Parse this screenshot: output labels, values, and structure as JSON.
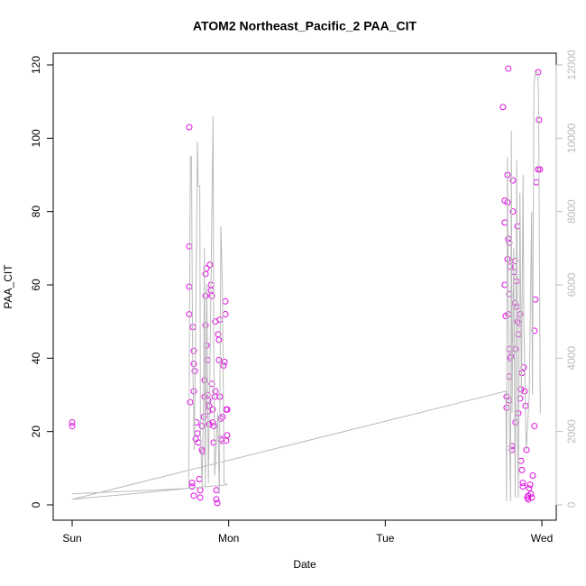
{
  "chart_data": {
    "type": "scatter",
    "title": "ATOM2 Northeast_Pacific_2 PAA_CIT",
    "xlabel": "Date",
    "ylabel": "PAA_CIT",
    "xlim": [
      -0.121,
      3.092
    ],
    "xticks": [
      {
        "value": 0,
        "label": "Sun"
      },
      {
        "value": 1,
        "label": "Mon"
      },
      {
        "value": 2,
        "label": "Tue"
      },
      {
        "value": 3,
        "label": "Wed"
      }
    ],
    "ylim": [
      -4.18,
      123.2
    ],
    "yticks": [
      0,
      20,
      40,
      60,
      80,
      100,
      120
    ],
    "y2lim": [
      -418,
      12320
    ],
    "y2ticks": [
      0,
      2000,
      4000,
      6000,
      8000,
      10000,
      12000
    ],
    "series": [
      {
        "name": "PAA_CIT",
        "type": "points",
        "color": "#e010e0",
        "x": [
          0,
          0,
          0.748,
          0.748,
          0.748,
          0.748,
          0.754,
          0.766,
          0.766,
          0.771,
          0.777,
          0.777,
          0.783,
          0.777,
          0.777,
          0.789,
          0.794,
          0.8,
          0.806,
          0.812,
          0.818,
          0.818,
          0.829,
          0.829,
          0.835,
          0.841,
          0.846,
          0.846,
          0.852,
          0.852,
          0.858,
          0.852,
          0.858,
          0.864,
          0.864,
          0.869,
          0.875,
          0.869,
          0.875,
          0.881,
          0.887,
          0.887,
          0.892,
          0.892,
          0.898,
          0.898,
          0.904,
          0.904,
          0.91,
          0.915,
          0.915,
          0.921,
          0.921,
          0.927,
          0.933,
          0.938,
          0.938,
          0.944,
          0.944,
          0.95,
          0.95,
          0.956,
          0.961,
          0.967,
          0.973,
          0.979,
          0.979,
          0.984,
          0.99,
          0.99,
          0.984,
          2.752,
          2.763,
          2.763,
          2.763,
          2.769,
          2.775,
          2.775,
          2.781,
          2.781,
          2.781,
          2.786,
          2.786,
          2.792,
          2.792,
          2.792,
          2.792,
          2.792,
          2.786,
          2.798,
          2.798,
          2.804,
          2.809,
          2.809,
          2.815,
          2.815,
          2.821,
          2.827,
          2.827,
          2.832,
          2.832,
          2.838,
          2.838,
          2.844,
          2.844,
          2.85,
          2.85,
          2.856,
          2.861,
          2.861,
          2.867,
          2.867,
          2.873,
          2.873,
          2.879,
          2.879,
          2.884,
          2.89,
          2.896,
          2.902,
          2.907,
          2.913,
          2.913,
          2.919,
          2.925,
          2.93,
          2.936,
          2.942,
          2.953,
          2.953,
          2.959,
          2.965,
          2.976,
          2.982,
          2.976,
          2.988
        ],
        "values": [
          22.5,
          21.5,
          103,
          70.5,
          59.5,
          52,
          28,
          6,
          5,
          48.5,
          42,
          38.5,
          36.5,
          31,
          2.5,
          18,
          22.5,
          19.5,
          17,
          7,
          4,
          2,
          21.5,
          15,
          14.5,
          24,
          34,
          29.5,
          57,
          63,
          64.5,
          49,
          43.5,
          39.5,
          30,
          28.5,
          27,
          25.5,
          22,
          65.5,
          58.5,
          60,
          57,
          33,
          26,
          22.5,
          21.5,
          17,
          29.5,
          31,
          50,
          4,
          1.5,
          0.5,
          46.5,
          45,
          39.5,
          50.5,
          29.5,
          23.5,
          18,
          17.5,
          24,
          38,
          39,
          52,
          55.5,
          26,
          26,
          19,
          17.5,
          108.5,
          77,
          83,
          60,
          51.5,
          29.5,
          26.5,
          90,
          82.5,
          67,
          72.5,
          52,
          71.5,
          57.5,
          42.5,
          35,
          28.5,
          119,
          65,
          40,
          40.5,
          16,
          15,
          88.5,
          80,
          63.5,
          66.5,
          55,
          42.5,
          22.5,
          61,
          54,
          76,
          50,
          46.5,
          25,
          49.5,
          52,
          29,
          31.5,
          12,
          36,
          9.5,
          5,
          6,
          37.5,
          31,
          27,
          15,
          2,
          1.5,
          2.5,
          4.5,
          5.5,
          3,
          2,
          8,
          21.5,
          47.5,
          56,
          88,
          91.5,
          105,
          118,
          91.5
        ]
      },
      {
        "name": "y2",
        "type": "line",
        "axis": "y2",
        "color": "#bbbbbb",
        "x": [
          0,
          0.745,
          0.748,
          0.755,
          0.762,
          0.77,
          0.78,
          0.79,
          0.8,
          0.805,
          0.815,
          0.82,
          0.83,
          0.84,
          0.845,
          0.85,
          0.86,
          0.87,
          0.88,
          0.9,
          0.905,
          0.91,
          0.93,
          0.94,
          0.95,
          0.96,
          0.97,
          0.99,
          0,
          2.77,
          2.775,
          2.78,
          2.79,
          2.8,
          2.805,
          2.81,
          2.82,
          2.83,
          2.84,
          2.845,
          2.85,
          2.86,
          2.87,
          2.88,
          2.885,
          2.9,
          2.92,
          2.935,
          2.94,
          2.95,
          2.96,
          2.975,
          2.98,
          2.99
        ],
        "values": [
          300,
          450,
          3200,
          9500,
          9500,
          4000,
          1500,
          5000,
          9900,
          8700,
          8700,
          2000,
          500,
          3000,
          7000,
          500,
          6000,
          600,
          3500,
          10600,
          4000,
          800,
          2500,
          300,
          7600,
          6000,
          600,
          550,
          150,
          3100,
          100,
          9500,
          3000,
          100,
          10200,
          2500,
          7000,
          200,
          9400,
          2000,
          200,
          8500,
          3000,
          9000,
          5000,
          1500,
          3000,
          8000,
          3000,
          11500,
          11800,
          11800,
          10800,
          2500
        ]
      }
    ]
  }
}
